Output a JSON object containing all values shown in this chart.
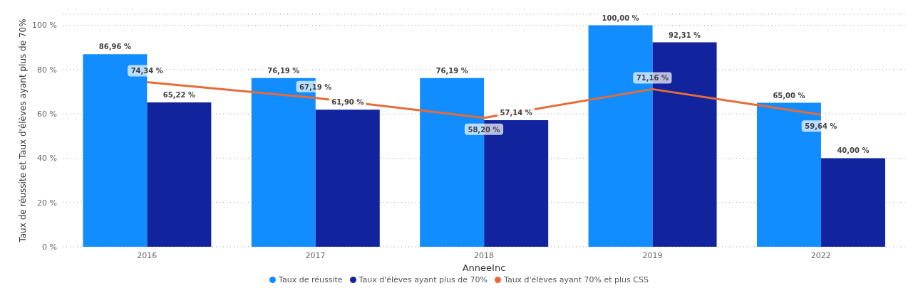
{
  "chart_data": {
    "type": "bar",
    "xlabel": "AnneeInc",
    "ylabel": "Taux de réussite et Taux d'élèves ayant plus de 70%",
    "categories": [
      "2016",
      "2017",
      "2018",
      "2019",
      "2022"
    ],
    "series": [
      {
        "name": "Taux de réussite",
        "color": "#118dff",
        "values": [
          86.96,
          76.19,
          76.19,
          100,
          65
        ],
        "value_labels": [
          "86,96 %",
          "76,19 %",
          "76,19 %",
          "100,00 %",
          "65,00 %"
        ]
      },
      {
        "name": "Taux d'élèves ayant plus de 70%",
        "color": "#12239e",
        "values": [
          65.22,
          61.9,
          57.14,
          92.31,
          40
        ],
        "value_labels": [
          "65,22 %",
          "61,90 %",
          "57,14 %",
          "92,31 %",
          "40,00 %"
        ]
      },
      {
        "name": "Taux d'élèves ayant 70% et plus CSS",
        "type": "line",
        "color": "#e66c37",
        "line_style": "solid",
        "values": [
          74.34,
          67.19,
          58.2,
          71.16,
          59.64
        ],
        "value_labels": [
          "74,34 %",
          "67,19 %",
          "58,20 %",
          "71,16 %",
          "59,64 %"
        ]
      }
    ],
    "ylim": [
      0,
      105
    ],
    "yticks": [
      {
        "value": 0,
        "label": "0 %"
      },
      {
        "value": 20,
        "label": "20 %"
      },
      {
        "value": 40,
        "label": "40 %"
      },
      {
        "value": 60,
        "label": "60 %"
      },
      {
        "value": 80,
        "label": "80 %"
      },
      {
        "value": 100,
        "label": "100 %"
      }
    ],
    "grid": "y",
    "legend": "bottom"
  }
}
